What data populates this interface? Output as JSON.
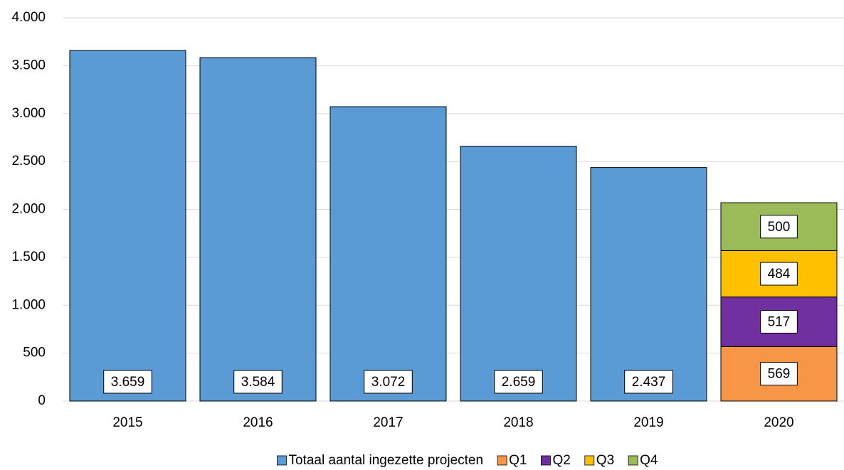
{
  "chart_data": {
    "type": "stacked_bar",
    "categories": [
      "2015",
      "2016",
      "2017",
      "2018",
      "2019",
      "2020"
    ],
    "series": [
      {
        "name": "Totaal aantal ingezette projecten",
        "color": "#5b9bd5",
        "values": [
          3659,
          3584,
          3072,
          2659,
          2437,
          null
        ],
        "value_labels": [
          "3.659",
          "3.584",
          "3.072",
          "2.659",
          "2.437",
          null
        ]
      },
      {
        "name": "Q1",
        "color": "#f79646",
        "values": [
          null,
          null,
          null,
          null,
          null,
          569
        ]
      },
      {
        "name": "Q2",
        "color": "#7030a0",
        "values": [
          null,
          null,
          null,
          null,
          null,
          517
        ]
      },
      {
        "name": "Q3",
        "color": "#ffc000",
        "values": [
          null,
          null,
          null,
          null,
          null,
          484
        ]
      },
      {
        "name": "Q4",
        "color": "#9bbb59",
        "values": [
          null,
          null,
          null,
          null,
          null,
          500
        ]
      }
    ],
    "ylim": [
      0,
      4000
    ],
    "yticks": [
      0,
      500,
      {
        "value": 1000,
        "label": "1.000"
      },
      {
        "value": 1500,
        "label": "1.500"
      },
      {
        "value": 2000,
        "label": "2.000"
      },
      {
        "value": 2500,
        "label": "2.500"
      },
      {
        "value": 3000,
        "label": "3.000"
      },
      {
        "value": 3500,
        "label": "3.500"
      },
      {
        "value": 4000,
        "label": "4.000"
      }
    ],
    "grid": true,
    "legend": "bottom"
  }
}
